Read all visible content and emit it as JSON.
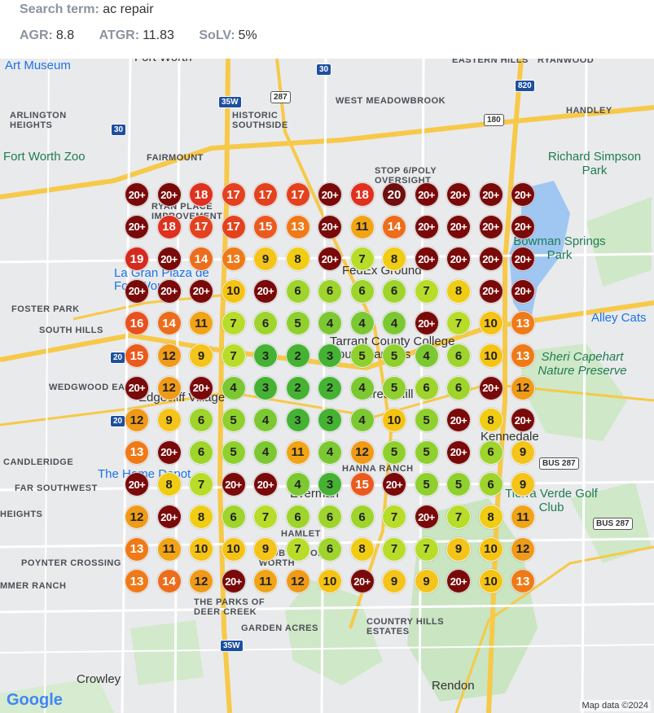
{
  "header": {
    "search_label": "Search term:",
    "search_value": "ac repair",
    "agr_label": "AGR:",
    "agr_value": "8.8",
    "atgr_label": "ATGR:",
    "atgr_value": "11.83",
    "solv_label": "SoLV:",
    "solv_value": "5%"
  },
  "map": {
    "places": [
      {
        "name": "Art Museum",
        "style": "poi"
      },
      {
        "name": "Fort Worth",
        "style": "big"
      },
      {
        "name": "EASTERN HILLS",
        "style": "area"
      },
      {
        "name": "RYANWOOD",
        "style": "area"
      },
      {
        "name": "ARLINGTON HEIGHTS",
        "style": "area"
      },
      {
        "name": "HISTORIC SOUTHSIDE",
        "style": "area"
      },
      {
        "name": "WEST MEADOWBROOK",
        "style": "area"
      },
      {
        "name": "HANDLEY",
        "style": "area"
      },
      {
        "name": "Fort Worth Zoo",
        "style": "park"
      },
      {
        "name": "FAIRMOUNT",
        "style": "area"
      },
      {
        "name": "STOP 6/POLY OVERSIGHT",
        "style": "area"
      },
      {
        "name": "Richard Simpson Park",
        "style": "park"
      },
      {
        "name": "RYAN PLACE IMPROVEMENT",
        "style": "area"
      },
      {
        "name": "Bowman Springs Park",
        "style": "park"
      },
      {
        "name": "La Gran Plaza de Fort Worth",
        "style": "poi"
      },
      {
        "name": "FedEx Ground",
        "style": "big"
      },
      {
        "name": "FOSTER PARK",
        "style": "area"
      },
      {
        "name": "SOUTH HILLS",
        "style": "area"
      },
      {
        "name": "Alley Cats",
        "style": "poi"
      },
      {
        "name": "Tarrant County College South Campus",
        "style": "big"
      },
      {
        "name": "Sheri Capehart Nature Preserve",
        "style": "park"
      },
      {
        "name": "WEDGWOOD EAST",
        "style": "area"
      },
      {
        "name": "Edgecliff Village",
        "style": "big"
      },
      {
        "name": "Forest Hill",
        "style": "big"
      },
      {
        "name": "Kennedale",
        "style": "big"
      },
      {
        "name": "CANDLERIDGE",
        "style": "area"
      },
      {
        "name": "The Home Depot",
        "style": "poi"
      },
      {
        "name": "HANNA RANCH",
        "style": "area"
      },
      {
        "name": "FAR SOUTHWEST",
        "style": "area"
      },
      {
        "name": "Everman",
        "style": "big"
      },
      {
        "name": "Tierra Verde Golf Club",
        "style": "park"
      },
      {
        "name": "HEIGHTS",
        "style": "area"
      },
      {
        "name": "HAMLET",
        "style": "area"
      },
      {
        "name": "POYNTER CROSSING",
        "style": "area"
      },
      {
        "name": "MMER RANCH",
        "style": "area"
      },
      {
        "name": "THE PARKS OF DEER CREEK",
        "style": "area"
      },
      {
        "name": "GARDEN ACRES",
        "style": "area"
      },
      {
        "name": "COUNTRY HILLS ESTATES",
        "style": "area"
      },
      {
        "name": "Crowley",
        "style": "big"
      },
      {
        "name": "Rendon",
        "style": "big"
      },
      {
        "name": "CLUB OF FORT WORTH",
        "style": "area"
      }
    ],
    "highway_shields": [
      "30",
      "30",
      "35W",
      "287",
      "180",
      "820",
      "20",
      "20",
      "BUS 287",
      "BUS 287",
      "35W"
    ],
    "logo": "Google",
    "attribution": "Map data ©2024"
  },
  "grid": {
    "rows": [
      [
        "20+",
        "20+",
        "18",
        "17",
        "17",
        "17",
        "20+",
        "18",
        "20",
        "20+",
        "20+",
        "20+",
        "20+"
      ],
      [
        "20+",
        "18",
        "17",
        "17",
        "15",
        "13",
        "20+",
        "11",
        "14",
        "20+",
        "20+",
        "20+",
        "20+"
      ],
      [
        "19",
        "20+",
        "14",
        "13",
        "9",
        "8",
        "20+",
        "7",
        "8",
        "20+",
        "20+",
        "20+",
        "20+"
      ],
      [
        "20+",
        "20+",
        "20+",
        "10",
        "20+",
        "6",
        "6",
        "6",
        "6",
        "7",
        "8",
        "20+",
        "20+"
      ],
      [
        "16",
        "14",
        "11",
        "7",
        "6",
        "5",
        "4",
        "4",
        "4",
        "20+",
        "7",
        "10",
        "13"
      ],
      [
        "15",
        "12",
        "9",
        "7",
        "3",
        "2",
        "3",
        "5",
        "5",
        "4",
        "6",
        "10",
        "13"
      ],
      [
        "20+",
        "12",
        "20+",
        "4",
        "3",
        "2",
        "2",
        "4",
        "5",
        "6",
        "6",
        "20+",
        "12"
      ],
      [
        "12",
        "9",
        "6",
        "5",
        "4",
        "3",
        "3",
        "4",
        "10",
        "5",
        "20+",
        "8",
        "20+"
      ],
      [
        "13",
        "20+",
        "6",
        "5",
        "4",
        "11",
        "4",
        "12",
        "5",
        "5",
        "20+",
        "6",
        "9"
      ],
      [
        "20+",
        "8",
        "7",
        "20+",
        "20+",
        "4",
        "3",
        "15",
        "20+",
        "5",
        "5",
        "6",
        "9"
      ],
      [
        "12",
        "20+",
        "8",
        "6",
        "7",
        "6",
        "6",
        "6",
        "7",
        "20+",
        "7",
        "8",
        "11"
      ],
      [
        "13",
        "11",
        "10",
        "10",
        "9",
        "7",
        "6",
        "8",
        "7",
        "7",
        "9",
        "10",
        "12"
      ],
      [
        "13",
        "14",
        "12",
        "20+",
        "11",
        "12",
        "10",
        "20+",
        "9",
        "9",
        "20+",
        "10",
        "13"
      ]
    ],
    "rank_colors": {
      "1": "#2eaa3a",
      "2": "#46b233",
      "3": "#46b233",
      "4": "#7cc832",
      "5": "#8fd02e",
      "6": "#9ed42c",
      "7": "#b8dc2a",
      "8": "#f0cc14",
      "9": "#f4c41a",
      "10": "#f5c313",
      "11": "#f0a416",
      "12": "#ef9a18",
      "13": "#ef7a18",
      "14": "#ec6d1c",
      "15": "#ea5a1e",
      "16": "#e8501e",
      "17": "#e3421e",
      "18": "#de311f",
      "19": "#d52a1e",
      "20": "#6f0f0f",
      "20+": "#7a0a0a"
    }
  }
}
